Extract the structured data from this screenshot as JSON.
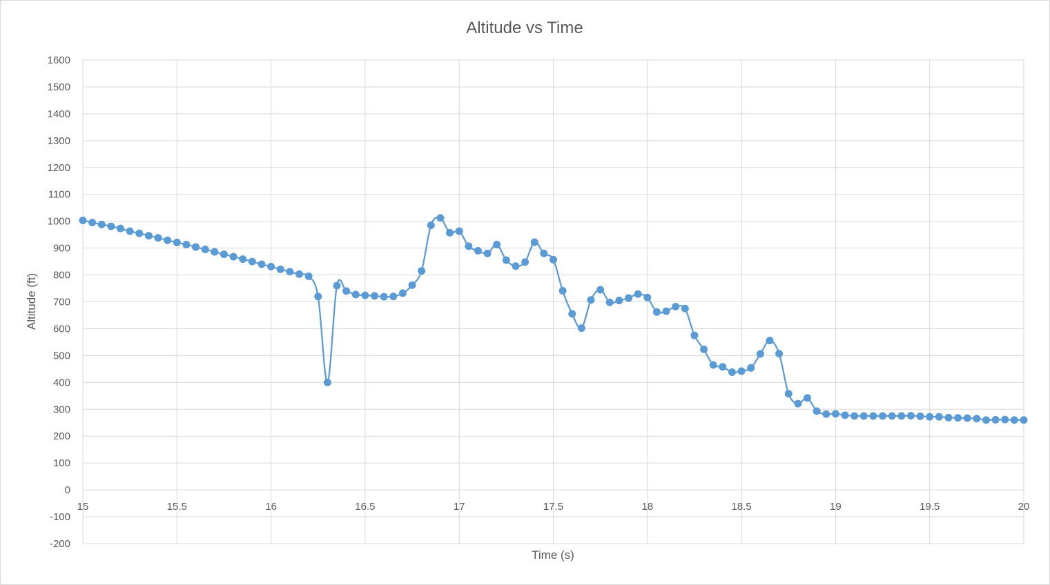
{
  "chart_data": {
    "type": "scatter",
    "title": "Altitude vs Time",
    "xlabel": "Time (s)",
    "ylabel": "Altitude (ft)",
    "xlim": [
      15,
      20
    ],
    "ylim": [
      -200,
      1600
    ],
    "xticks": [
      15,
      15.5,
      16,
      16.5,
      17,
      17.5,
      18,
      18.5,
      19,
      19.5,
      20
    ],
    "yticks": [
      -200,
      -100,
      0,
      100,
      200,
      300,
      400,
      500,
      600,
      700,
      800,
      900,
      1000,
      1100,
      1200,
      1300,
      1400,
      1500,
      1600
    ],
    "grid": true,
    "legend": "none",
    "line_style": "smooth-with-markers",
    "series": [
      {
        "color": "#5b9bd5",
        "x": [
          15,
          15.05,
          15.1,
          15.15,
          15.2,
          15.25,
          15.3,
          15.35,
          15.4,
          15.45,
          15.5,
          15.55,
          15.6,
          15.65,
          15.7,
          15.75,
          15.8,
          15.85,
          15.9,
          15.95,
          16,
          16.05,
          16.1,
          16.15,
          16.2,
          16.25,
          16.3,
          16.35,
          16.4,
          16.45,
          16.5,
          16.55,
          16.6,
          16.65,
          16.7,
          16.75,
          16.8,
          16.85,
          16.9,
          16.95,
          17,
          17.05,
          17.1,
          17.15,
          17.2,
          17.25,
          17.3,
          17.35,
          17.4,
          17.45,
          17.5,
          17.55,
          17.6,
          17.65,
          17.7,
          17.75,
          17.8,
          17.85,
          17.9,
          17.95,
          18,
          18.05,
          18.1,
          18.15,
          18.2,
          18.25,
          18.3,
          18.35,
          18.4,
          18.45,
          18.5,
          18.55,
          18.6,
          18.65,
          18.7,
          18.75,
          18.8,
          18.85,
          18.9,
          18.95,
          19,
          19.05,
          19.1,
          19.15,
          19.2,
          19.25,
          19.3,
          19.35,
          19.4,
          19.45,
          19.5,
          19.55,
          19.6,
          19.65,
          19.7,
          19.75,
          19.8,
          19.85,
          19.9,
          19.95,
          20
        ],
        "y": [
          1003,
          995,
          988,
          981,
          973,
          963,
          955,
          946,
          938,
          929,
          921,
          913,
          904,
          895,
          886,
          877,
          868,
          859,
          850,
          840,
          831,
          821,
          812,
          803,
          795,
          720,
          400,
          760,
          740,
          727,
          724,
          722,
          719,
          720,
          732,
          762,
          815,
          985,
          1012,
          957,
          963,
          907,
          890,
          880,
          913,
          855,
          833,
          848,
          922,
          880,
          857,
          741,
          655,
          602,
          707,
          745,
          698,
          705,
          714,
          729,
          716,
          662,
          665,
          682,
          675,
          575,
          523,
          465,
          458,
          438,
          442,
          454,
          506,
          556,
          507,
          358,
          321,
          342,
          293,
          282,
          283,
          278,
          275,
          275,
          275,
          275,
          275,
          275,
          276,
          274,
          272,
          272,
          269,
          268,
          267,
          265,
          260,
          261,
          262,
          260,
          260
        ]
      }
    ]
  }
}
